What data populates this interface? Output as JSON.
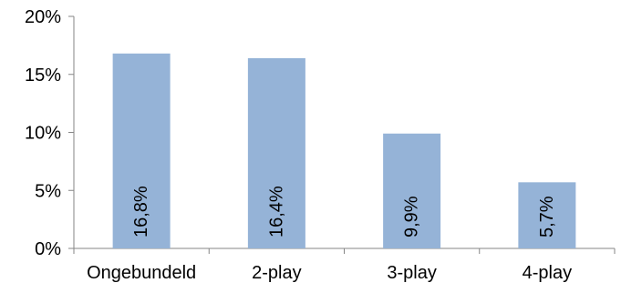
{
  "chart_data": {
    "type": "bar",
    "title": "",
    "xlabel": "",
    "ylabel": "",
    "categories": [
      "Ongebundeld",
      "2-play",
      "3-play",
      "4-play"
    ],
    "values": [
      16.8,
      16.4,
      9.9,
      5.7
    ],
    "data_labels": [
      "16,8%",
      "16,4%",
      "9,9%",
      "5,7%"
    ],
    "ylim": [
      0,
      20
    ],
    "yticks": [
      0,
      5,
      10,
      15,
      20
    ],
    "ytick_labels": [
      "0%",
      "5%",
      "10%",
      "15%",
      "20%"
    ],
    "bar_color": "#95b3d7",
    "axis_color": "#868686",
    "grid": false,
    "legend": "none"
  }
}
